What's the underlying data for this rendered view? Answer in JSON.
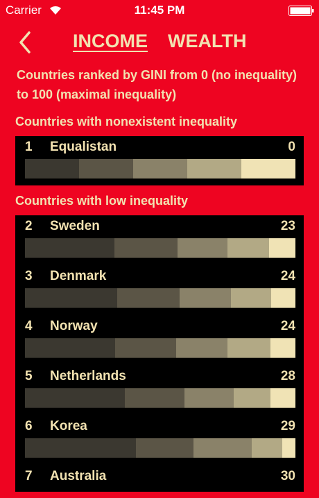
{
  "status_bar": {
    "carrier": "Carrier",
    "time": "11:45 PM"
  },
  "nav": {
    "tabs": [
      "INCOME",
      "WEALTH"
    ]
  },
  "description": "Countries ranked by GINI from 0 (no inequality) to 100 (maximal inequality)",
  "sections": [
    {
      "heading": "Countries with nonexistent inequality",
      "countries": [
        {
          "rank": 1,
          "name": "Equalistan",
          "gini": 0,
          "shares": [
            20,
            20,
            20,
            20,
            20
          ]
        }
      ]
    },
    {
      "heading": "Countries with low inequality",
      "countries": [
        {
          "rank": 2,
          "name": "Sweden",
          "gini": 23,
          "shares": [
            33.2,
            23.1,
            18.5,
            15.4,
            9.8
          ]
        },
        {
          "rank": 3,
          "name": "Denmark",
          "gini": 24,
          "shares": [
            34.2,
            22.9,
            19,
            14.9,
            9
          ]
        },
        {
          "rank": 4,
          "name": "Norway",
          "gini": 24,
          "shares": [
            33.4,
            22.6,
            19,
            15.7,
            9.3
          ]
        },
        {
          "rank": 5,
          "name": "Netherlands",
          "gini": 28,
          "shares": [
            37,
            22.1,
            18,
            13.6,
            9.3
          ]
        },
        {
          "rank": 6,
          "name": "Korea",
          "gini": 29,
          "shares": [
            41.1,
            21.1,
            21.6,
            11.3,
            4.9
          ]
        },
        {
          "rank": 7,
          "name": "Australia",
          "gini": 30
        }
      ]
    }
  ]
}
